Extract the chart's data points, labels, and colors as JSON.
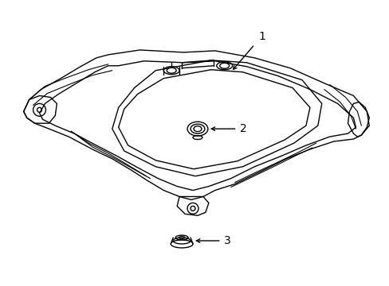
{
  "bg_color": "#ffffff",
  "line_color": "#000000",
  "lw": 1.0,
  "fig_width": 4.89,
  "fig_height": 3.6,
  "dpi": 100,
  "label_1": "1",
  "label_2": "2",
  "label_3": "3"
}
